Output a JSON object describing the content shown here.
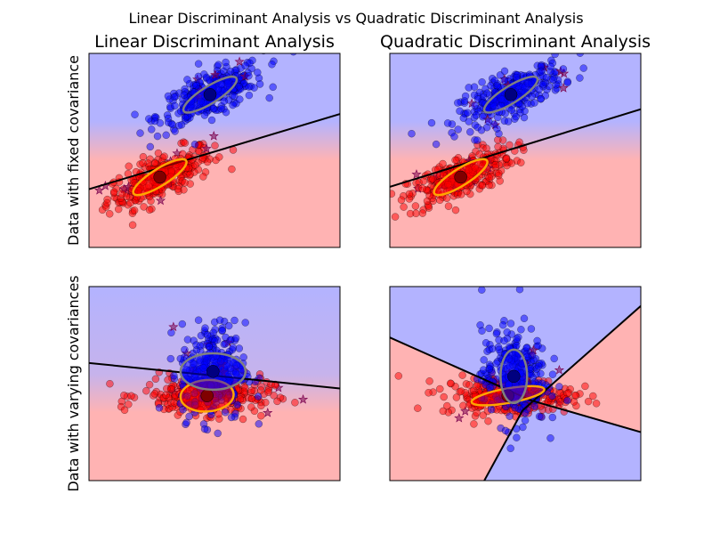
{
  "figure": {
    "suptitle": "Linear Discriminant Analysis vs Quadratic Discriminant Analysis",
    "column_titles": [
      "Linear Discriminant Analysis",
      "Quadratic Discriminant Analysis"
    ],
    "row_labels": [
      "Data with fixed covariance",
      "Data with varying covariances"
    ],
    "colors": {
      "class0_point": "#ff0000",
      "class1_point": "#0000ff",
      "class0_region": "#ffb3b3",
      "class1_region": "#b3b3ff",
      "misclassified_star": "#7a004d",
      "boundary": "#000000",
      "mean_center_0": "#800000",
      "mean_center_1": "#000080",
      "ellipse_0": "#ffa500",
      "ellipse_1": "#808080"
    }
  },
  "chart_data": [
    {
      "type": "scatter",
      "row": 0,
      "col": 0,
      "title": "Linear Discriminant Analysis",
      "ylabel": "Data with fixed covariance",
      "xlim": [
        -4,
        4.5
      ],
      "ylim": [
        -4.5,
        3.5
      ],
      "ticks_visible": false,
      "classes": [
        {
          "mean": [
            -1.6,
            -1.6
          ],
          "cov": [
            [
              0.8,
              0.4
            ],
            [
              0.4,
              0.4
            ]
          ],
          "n": 300,
          "ellipse": {
            "width": 2.1,
            "height": 0.7,
            "angle_deg": 32
          }
        },
        {
          "mean": [
            0.1,
            1.8
          ],
          "cov": [
            [
              0.8,
              0.4
            ],
            [
              0.4,
              0.4
            ]
          ],
          "n": 300,
          "ellipse": {
            "width": 2.1,
            "height": 0.7,
            "angle_deg": 32
          }
        }
      ],
      "boundary": {
        "kind": "line",
        "x": [
          -4,
          4.5
        ],
        "y": [
          -2.1,
          1.0
        ]
      }
    },
    {
      "type": "scatter",
      "row": 0,
      "col": 1,
      "title": "Quadratic Discriminant Analysis",
      "xlim": [
        -4,
        4.5
      ],
      "ylim": [
        -4.5,
        3.5
      ],
      "ticks_visible": false,
      "classes": [
        {
          "mean": [
            -1.6,
            -1.6
          ],
          "cov": [
            [
              0.8,
              0.4
            ],
            [
              0.4,
              0.4
            ]
          ],
          "n": 300,
          "ellipse": {
            "width": 2.1,
            "height": 0.7,
            "angle_deg": 32
          }
        },
        {
          "mean": [
            0.1,
            1.8
          ],
          "cov": [
            [
              0.8,
              0.4
            ],
            [
              0.4,
              0.4
            ]
          ],
          "n": 300,
          "ellipse": {
            "width": 2.1,
            "height": 0.7,
            "angle_deg": 32
          }
        }
      ],
      "boundary": {
        "kind": "line",
        "x": [
          -4,
          4.5
        ],
        "y": [
          -2.0,
          1.2
        ]
      }
    },
    {
      "type": "scatter",
      "row": 1,
      "col": 0,
      "ylabel": "Data with varying covariances",
      "xlim": [
        -4,
        4.5
      ],
      "ylim": [
        -3.5,
        4.5
      ],
      "ticks_visible": false,
      "classes": [
        {
          "mean": [
            0.0,
            0.0
          ],
          "cov": [
            [
              1.2,
              0.0
            ],
            [
              0.0,
              0.15
            ]
          ],
          "n": 300,
          "ellipse": {
            "width": 1.8,
            "height": 1.3,
            "angle_deg": 4
          }
        },
        {
          "mean": [
            0.2,
            1.0
          ],
          "cov": [
            [
              0.3,
              0.0
            ],
            [
              0.0,
              1.0
            ]
          ],
          "n": 300,
          "ellipse": {
            "width": 2.2,
            "height": 1.5,
            "angle_deg": 0
          }
        }
      ],
      "boundary": {
        "kind": "line",
        "x": [
          -4,
          4.5
        ],
        "y": [
          1.35,
          0.3
        ]
      }
    },
    {
      "type": "scatter",
      "row": 1,
      "col": 1,
      "xlim": [
        -4,
        4.5
      ],
      "ylim": [
        -3.5,
        4.5
      ],
      "ticks_visible": false,
      "classes": [
        {
          "mean": [
            0.0,
            0.0
          ],
          "cov": [
            [
              1.2,
              0.0
            ],
            [
              0.0,
              0.15
            ]
          ],
          "n": 300,
          "ellipse": {
            "width": 2.5,
            "height": 0.6,
            "angle_deg": 10
          }
        },
        {
          "mean": [
            0.2,
            0.8
          ],
          "cov": [
            [
              0.3,
              0.0
            ],
            [
              0.0,
              1.0
            ]
          ],
          "n": 300,
          "ellipse": {
            "width": 0.9,
            "height": 2.2,
            "angle_deg": 0
          }
        }
      ],
      "boundary": {
        "kind": "lines",
        "segments": [
          {
            "x": [
              -4,
              0.8
            ],
            "y": [
              2.4,
              -0.2
            ]
          },
          {
            "x": [
              0.8,
              4.5
            ],
            "y": [
              -0.2,
              -1.5
            ]
          },
          {
            "x": [
              -0.8,
              0.5
            ],
            "y": [
              -3.5,
              -0.6
            ]
          },
          {
            "x": [
              0.5,
              4.5
            ],
            "y": [
              -0.6,
              3.7
            ]
          }
        ]
      }
    }
  ]
}
